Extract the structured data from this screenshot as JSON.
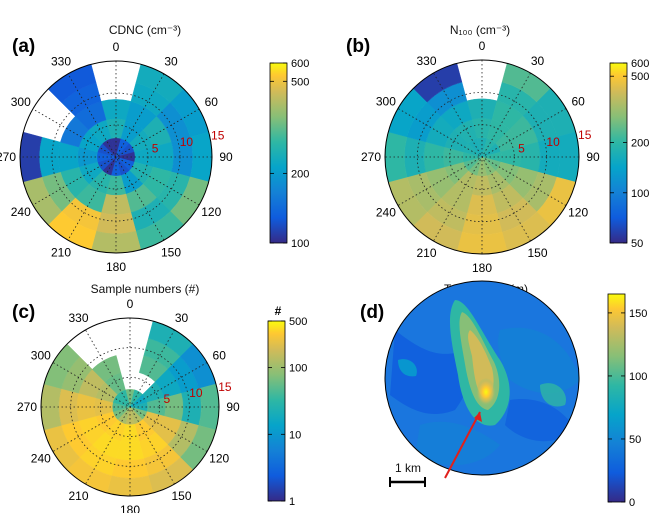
{
  "chart_data": [
    {
      "panel": "(a)",
      "type": "heatmap",
      "title": "CDNC (cm⁻³)",
      "angle_ticks": [
        "0",
        "30",
        "60",
        "90",
        "120",
        "150",
        "180",
        "210",
        "240",
        "270",
        "300",
        "330"
      ],
      "radius_ticks": [
        "5",
        "10",
        "15"
      ],
      "colorbar": {
        "scale": "log",
        "range": [
          100,
          600
        ],
        "ticks": [
          "600",
          "500",
          "200",
          "100"
        ]
      }
    },
    {
      "panel": "(b)",
      "type": "heatmap",
      "title": "N₁₀₀ (cm⁻³)",
      "angle_ticks": [
        "0",
        "30",
        "60",
        "90",
        "120",
        "150",
        "180",
        "210",
        "240",
        "270",
        "300",
        "330"
      ],
      "radius_ticks": [
        "5",
        "10",
        "15"
      ],
      "colorbar": {
        "scale": "log",
        "range": [
          50,
          600
        ],
        "ticks": [
          "600",
          "500",
          "200",
          "100",
          "50"
        ]
      }
    },
    {
      "panel": "(c)",
      "type": "heatmap",
      "title": "Sample numbers (#)",
      "angle_ticks": [
        "0",
        "30",
        "60",
        "90",
        "120",
        "150",
        "180",
        "210",
        "240",
        "270",
        "300",
        "330"
      ],
      "radius_ticks": [
        "5",
        "10",
        "15"
      ],
      "colorbar": {
        "scale": "log",
        "unit_label": "#",
        "range": [
          1,
          500
        ],
        "ticks": [
          "500",
          "100",
          "10",
          "1"
        ]
      }
    },
    {
      "panel": "(d)",
      "type": "heatmap",
      "title": "Topography (m)",
      "scale_bar": "1 km",
      "colorbar": {
        "scale": "linear",
        "range": [
          0,
          165
        ],
        "ticks": [
          "150",
          "100",
          "50",
          "0"
        ]
      }
    }
  ]
}
